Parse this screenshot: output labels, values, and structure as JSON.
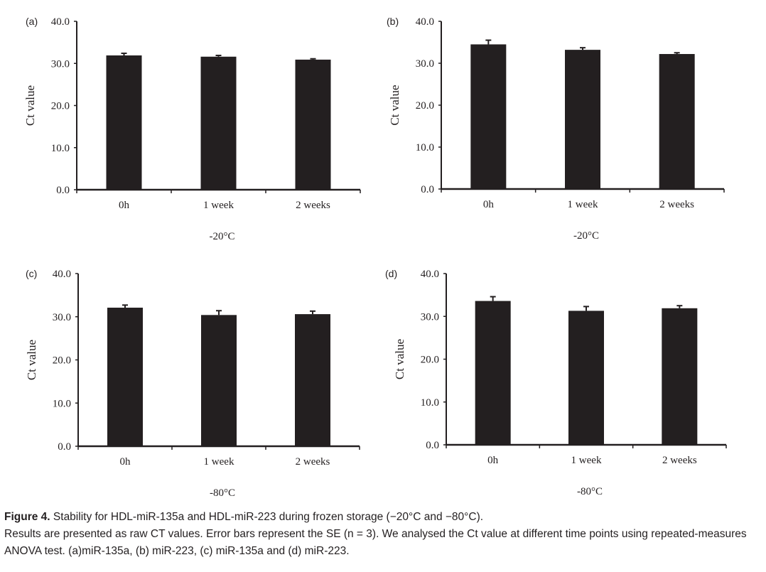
{
  "chart_data": [
    {
      "type": "bar",
      "panel_label": "(a)",
      "ylabel": "Ct value",
      "xlabel": "-20°C",
      "ylim": [
        0,
        40
      ],
      "yticks": [
        "0.0",
        "10.0",
        "20.0",
        "30.0",
        "40.0"
      ],
      "categories": [
        "0h",
        "1 week",
        "2 weeks"
      ],
      "values": [
        31.9,
        31.6,
        30.9
      ],
      "errors": [
        0.5,
        0.3,
        0.2
      ]
    },
    {
      "type": "bar",
      "panel_label": "(b)",
      "ylabel": "Ct value",
      "xlabel": "-20°C",
      "ylim": [
        0,
        40
      ],
      "yticks": [
        "0.0",
        "10.0",
        "20.0",
        "30.0",
        "40.0"
      ],
      "categories": [
        "0h",
        "1 week",
        "2 weeks"
      ],
      "values": [
        34.5,
        33.2,
        32.2
      ],
      "errors": [
        1.0,
        0.5,
        0.3
      ]
    },
    {
      "type": "bar",
      "panel_label": "(c)",
      "ylabel": "Ct value",
      "xlabel": "-80°C",
      "ylim": [
        0,
        40
      ],
      "yticks": [
        "0.0",
        "10.0",
        "20.0",
        "30.0",
        "40.0"
      ],
      "categories": [
        "0h",
        "1 week",
        "2 weeks"
      ],
      "values": [
        32.1,
        30.4,
        30.6
      ],
      "errors": [
        0.6,
        1.0,
        0.7
      ]
    },
    {
      "type": "bar",
      "panel_label": "(d)",
      "ylabel": "Ct value",
      "xlabel": "-80°C",
      "ylim": [
        0,
        40
      ],
      "yticks": [
        "0.0",
        "10.0",
        "20.0",
        "30.0",
        "40.0"
      ],
      "categories": [
        "0h",
        "1 week",
        "2 weeks"
      ],
      "values": [
        33.6,
        31.3,
        31.9
      ],
      "errors": [
        1.0,
        1.0,
        0.6
      ]
    }
  ],
  "colors": {
    "bar": "#231f20",
    "axis": "#231f20"
  },
  "caption": {
    "label": "Figure 4.",
    "title": "Stability for HDL-miR-135a and HDL-miR-223 during frozen storage (−20°C and −80°C).",
    "body": "Results are presented as raw CT values. Error bars represent the SE (n = 3). We analysed the Ct value at different time points using repeated-measures ANOVA test. (a)miR-135a, (b) miR-223, (c) miR-135a and (d) miR-223."
  }
}
